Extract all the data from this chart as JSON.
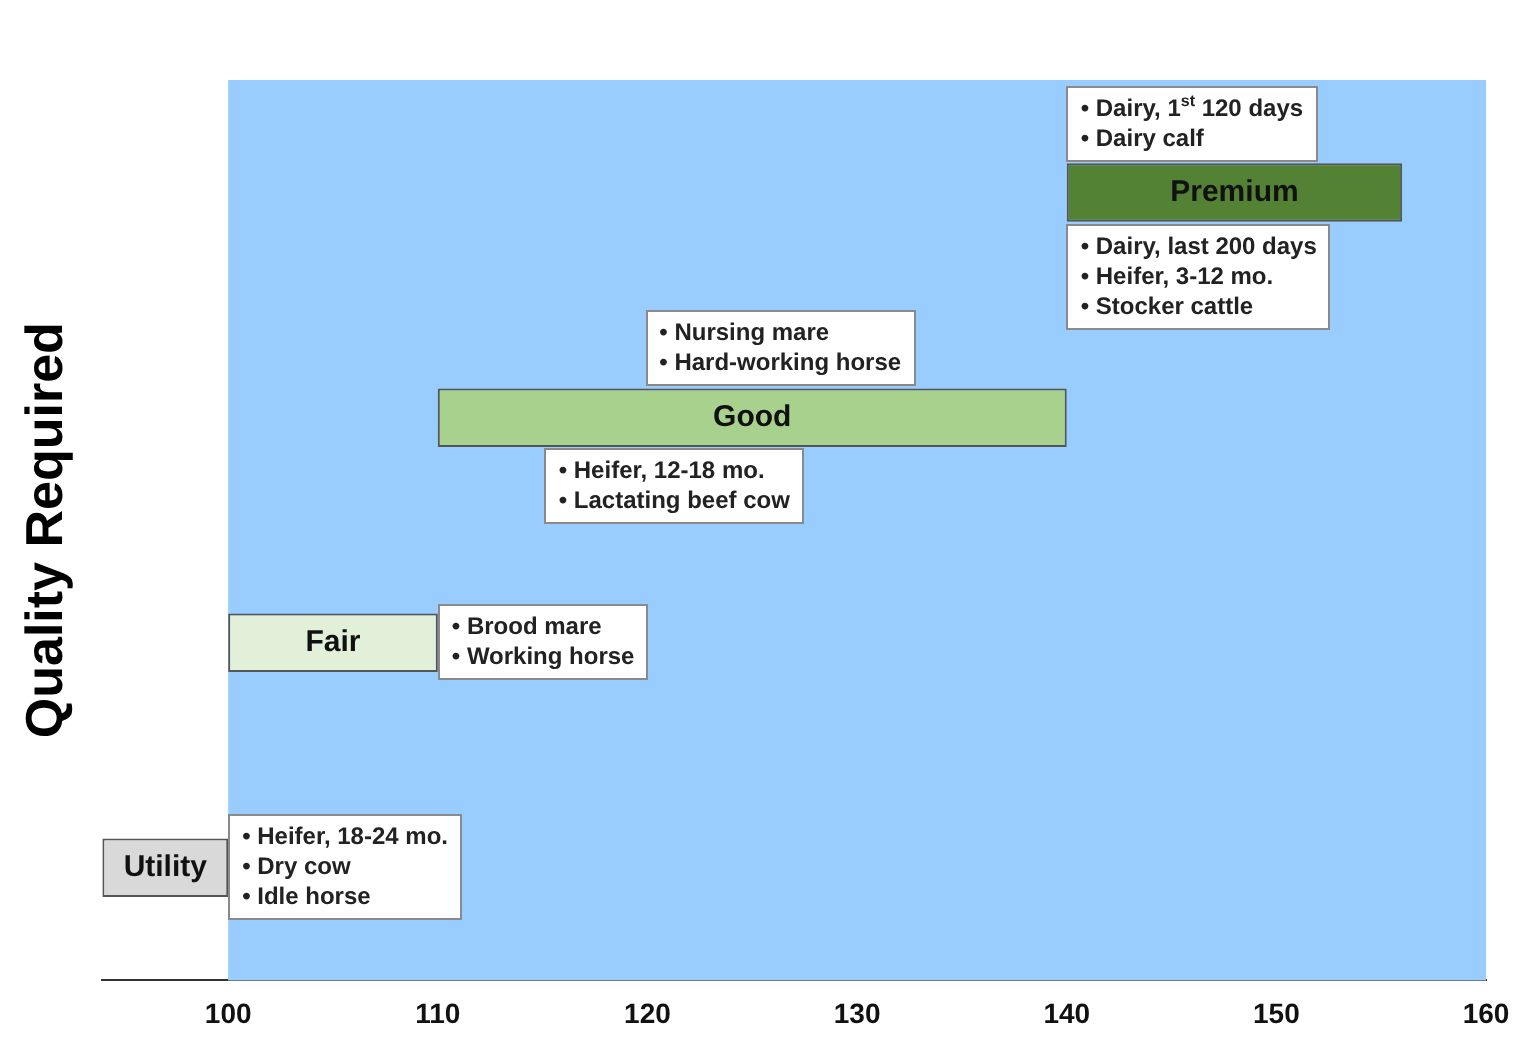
{
  "chart_data": {
    "type": "bar",
    "orientation": "horizontal",
    "ylabel": "Quality Required",
    "categories": [
      "Premium",
      "Good",
      "Fair",
      "Utility"
    ],
    "base": [
      140,
      110,
      100,
      94
    ],
    "values": [
      16,
      30,
      10,
      6
    ],
    "colors": [
      "#548235",
      "#a9d18e",
      "#e2efd9",
      "#d9d9d9"
    ],
    "xlim": [
      94,
      160
    ],
    "xticks": [
      100,
      110,
      120,
      130,
      140,
      150,
      160
    ],
    "bands": [
      {
        "axis": "x",
        "from": 100,
        "to": 160,
        "color": "#99ccff"
      }
    ],
    "tick_labels": "x",
    "grid": false,
    "legend": false,
    "annotations": [
      "• Heifer, 18-24 mo.\n• Dry cow\n• Idle horse",
      "• Brood mare\n• Working horse",
      "• Heifer, 12-18 mo.\n• Lactating beef cow",
      "• Nursing mare\n• Hard-working horse",
      "• Dairy, last 200 days\n• Heifer, 3-12 mo.\n• Stocker cattle",
      "• Dairy, 1$^{st}$ 120 days\n• Dairy calf"
    ]
  }
}
